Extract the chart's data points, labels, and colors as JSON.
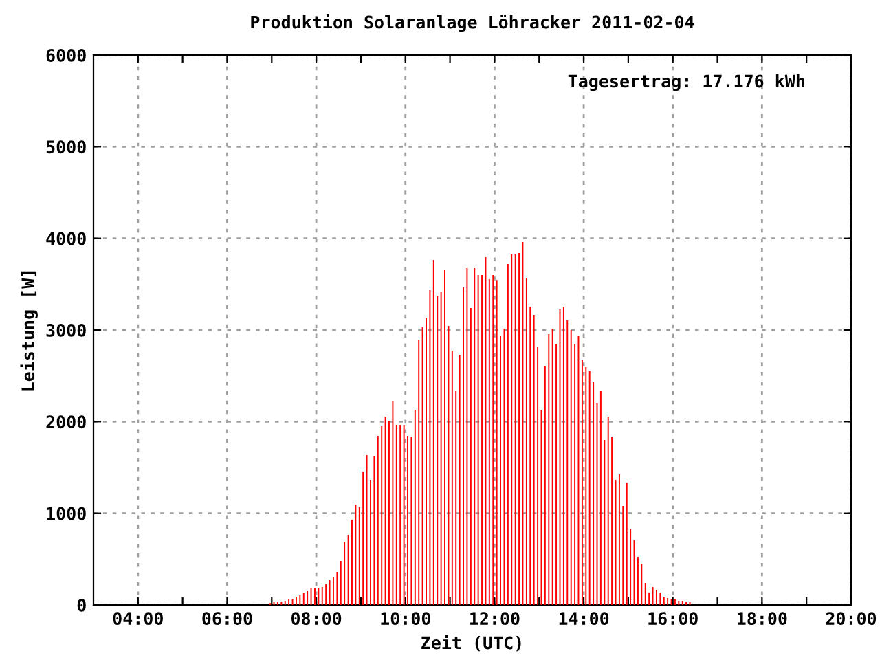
{
  "chart_data": {
    "type": "bar",
    "title": "Produktion Solaranlage Löhracker 2011-02-04",
    "xlabel": "Zeit (UTC)",
    "ylabel": "Leistung [W]",
    "annotations": [
      "Tagesertrag: 17.176 kWh"
    ],
    "x": [
      6.967,
      7.05,
      7.133,
      7.217,
      7.3,
      7.383,
      7.467,
      7.55,
      7.633,
      7.717,
      7.8,
      7.883,
      7.967,
      8.05,
      8.133,
      8.217,
      8.3,
      8.383,
      8.467,
      8.55,
      8.633,
      8.717,
      8.8,
      8.883,
      8.967,
      9.05,
      9.133,
      9.217,
      9.3,
      9.383,
      9.467,
      9.55,
      9.633,
      9.717,
      9.8,
      9.883,
      9.967,
      10.05,
      10.133,
      10.217,
      10.3,
      10.383,
      10.467,
      10.55,
      10.633,
      10.717,
      10.8,
      10.883,
      10.967,
      11.05,
      11.133,
      11.217,
      11.3,
      11.383,
      11.467,
      11.55,
      11.633,
      11.717,
      11.8,
      11.883,
      11.967,
      12.05,
      12.133,
      12.217,
      12.3,
      12.383,
      12.467,
      12.55,
      12.633,
      12.717,
      12.8,
      12.883,
      12.967,
      13.05,
      13.133,
      13.217,
      13.3,
      13.383,
      13.467,
      13.55,
      13.633,
      13.717,
      13.8,
      13.883,
      13.967,
      14.05,
      14.133,
      14.217,
      14.3,
      14.383,
      14.467,
      14.55,
      14.633,
      14.717,
      14.8,
      14.883,
      14.967,
      15.05,
      15.133,
      15.217,
      15.3,
      15.383,
      15.467,
      15.55,
      15.633,
      15.717,
      15.8,
      15.883,
      15.967,
      16.05,
      16.133,
      16.217,
      16.3,
      16.383
    ],
    "series": [
      {
        "color": "#ff0000",
        "values": [
          20,
          30,
          30,
          30,
          45,
          60,
          60,
          90,
          105,
          135,
          150,
          180,
          180,
          180,
          195,
          225,
          270,
          300,
          360,
          480,
          690,
          765,
          930,
          1095,
          1065,
          1455,
          1635,
          1365,
          1620,
          1845,
          1950,
          2055,
          2010,
          2220,
          1965,
          1965,
          1965,
          1845,
          1830,
          2130,
          2895,
          3030,
          3135,
          3435,
          3765,
          3375,
          3420,
          3660,
          3045,
          2775,
          2340,
          2730,
          3465,
          3675,
          3240,
          3675,
          3600,
          3600,
          3795,
          3555,
          3600,
          3545,
          2940,
          3015,
          3720,
          3825,
          3825,
          3840,
          3960,
          3570,
          3255,
          3165,
          2820,
          2130,
          2610,
          2955,
          3015,
          2850,
          3225,
          3255,
          3105,
          3000,
          2850,
          2940,
          2670,
          2595,
          2550,
          2430,
          2205,
          2340,
          1800,
          2055,
          1830,
          1365,
          1425,
          1080,
          1335,
          825,
          705,
          525,
          450,
          240,
          135,
          195,
          165,
          135,
          90,
          75,
          60,
          60,
          45,
          45,
          30,
          30
        ]
      }
    ],
    "xlim": [
      3,
      20
    ],
    "xticks": [
      {
        "value": 4,
        "label": "04:00"
      },
      {
        "value": 5,
        "label": null
      },
      {
        "value": 6,
        "label": "06:00"
      },
      {
        "value": 7,
        "label": null
      },
      {
        "value": 8,
        "label": "08:00"
      },
      {
        "value": 9,
        "label": null
      },
      {
        "value": 10,
        "label": "10:00"
      },
      {
        "value": 11,
        "label": null
      },
      {
        "value": 12,
        "label": "12:00"
      },
      {
        "value": 13,
        "label": null
      },
      {
        "value": 14,
        "label": "14:00"
      },
      {
        "value": 15,
        "label": null
      },
      {
        "value": 16,
        "label": "16:00"
      },
      {
        "value": 17,
        "label": null
      },
      {
        "value": 18,
        "label": "18:00"
      },
      {
        "value": 19,
        "label": null
      },
      {
        "value": 20,
        "label": "20:00"
      }
    ],
    "ylim": [
      0,
      6000
    ],
    "yticks": [
      0,
      1000,
      2000,
      3000,
      4000,
      5000,
      6000
    ],
    "grid": true,
    "legend": false
  }
}
